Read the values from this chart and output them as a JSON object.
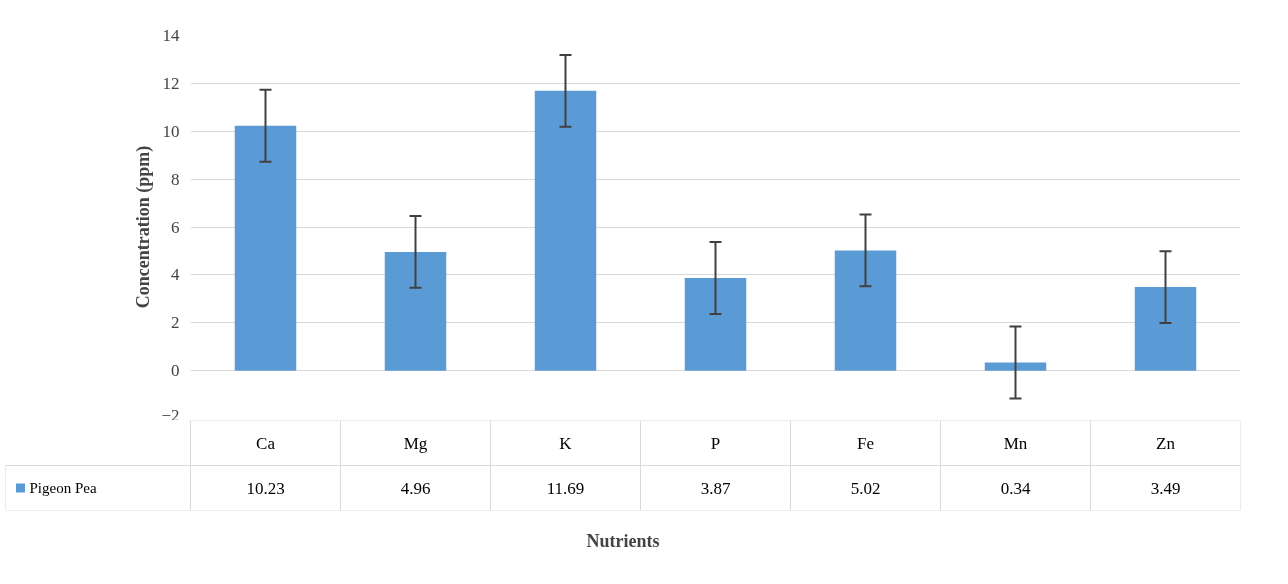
{
  "chart_data": {
    "type": "bar",
    "xlabel": "Nutrients",
    "ylabel": "Concentration (ppm)",
    "categories": [
      "Ca",
      "Mg",
      "K",
      "P",
      "Fe",
      "Mn",
      "Zn"
    ],
    "series": [
      {
        "name": "Pigeon Pea",
        "color": "#5b9bd5",
        "values": [
          10.23,
          4.96,
          11.69,
          3.87,
          5.02,
          0.34,
          3.49
        ],
        "errors": [
          1.5,
          1.5,
          1.5,
          1.5,
          1.5,
          1.5,
          1.5
        ]
      }
    ],
    "ylim": [
      -2,
      14
    ],
    "yticks": [
      -2,
      0,
      2,
      4,
      6,
      8,
      10,
      12,
      14
    ],
    "grid": "y",
    "data_labels": true,
    "legend": "bottom left"
  }
}
